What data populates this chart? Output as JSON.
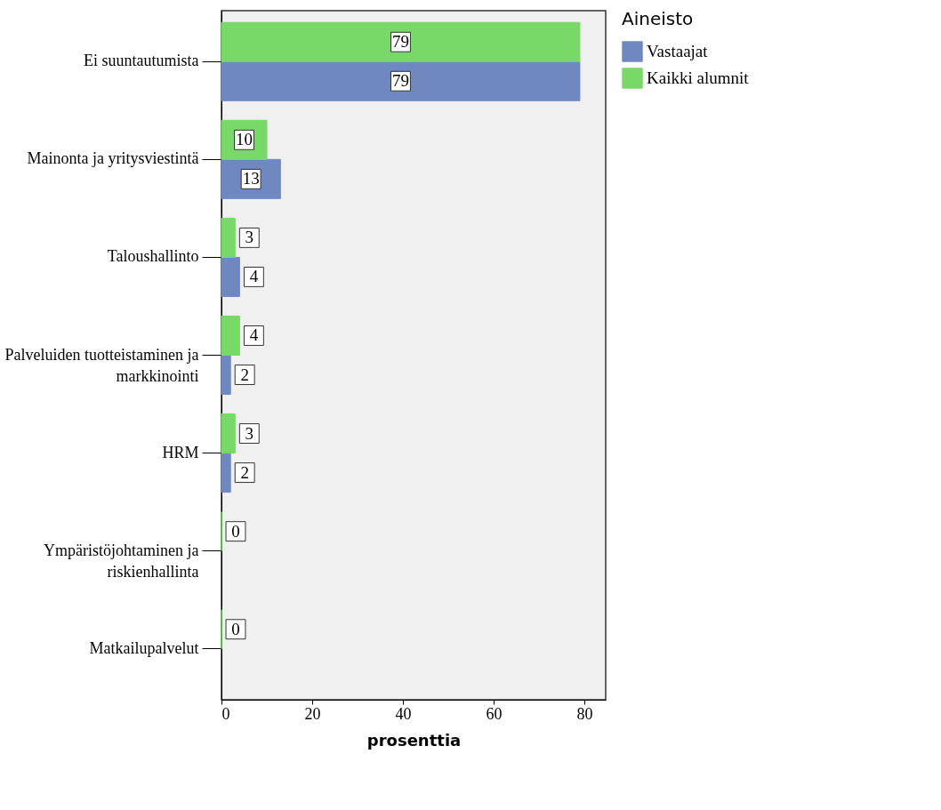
{
  "chart_data": {
    "type": "bar",
    "orientation": "horizontal",
    "xlabel": "prosenttia",
    "legend_title": "Aineisto",
    "legend": "top right",
    "grid": false,
    "data_labels": true,
    "categories": [
      "Ei suuntautumista",
      "Mainonta ja yritysviestintä",
      "Taloushallinto",
      "Palveluiden tuotteistaminen ja markkinointi",
      "HRM",
      "Ympäristöjohtaminen ja riskienhallinta",
      "Matkailupalvelut"
    ],
    "series": [
      {
        "name": "Vastaajat",
        "color": "#7088c0",
        "values": [
          79,
          13,
          4,
          2,
          2,
          null,
          null
        ]
      },
      {
        "name": "Kaikki alumnit",
        "color": "#78d868",
        "values": [
          79,
          10,
          3,
          4,
          3,
          0,
          0
        ]
      }
    ],
    "xlim": [
      0,
      84.7
    ],
    "xticks": [
      0,
      20,
      40,
      60,
      80
    ]
  }
}
